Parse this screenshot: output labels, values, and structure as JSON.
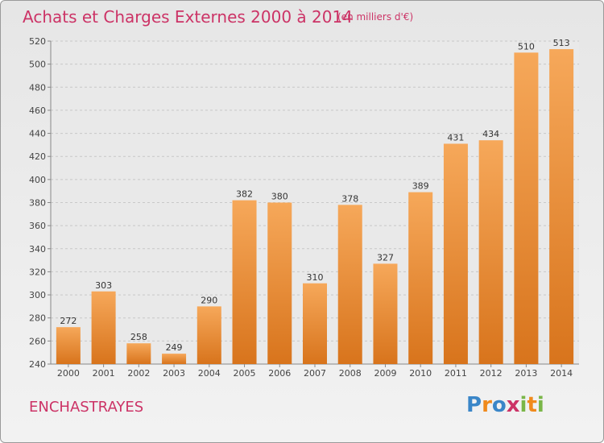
{
  "title": "Achats et Charges Externes 2000 à 2014",
  "subtitle": "(en milliers d'€)",
  "commune": "ENCHASTRAYES",
  "logo": {
    "text": "Proxiti",
    "colors": [
      "#3a86c8",
      "#f08a1c",
      "#3a86c8",
      "#cc3366",
      "#7ab648",
      "#f08a1c",
      "#7ab648"
    ]
  },
  "colors": {
    "title": "#cc3366",
    "bar_light": "#f6a85a",
    "bar_dark": "#d8741c"
  },
  "chart_data": {
    "type": "bar",
    "title": "Achats et Charges Externes 2000 à 2014",
    "subtitle": "(en milliers d'€)",
    "xlabel": "",
    "ylabel": "",
    "categories": [
      "2000",
      "2001",
      "2002",
      "2003",
      "2004",
      "2005",
      "2006",
      "2007",
      "2008",
      "2009",
      "2010",
      "2011",
      "2012",
      "2013",
      "2014"
    ],
    "values": [
      272,
      303,
      258,
      249,
      290,
      382,
      380,
      310,
      378,
      327,
      389,
      431,
      434,
      510,
      513
    ],
    "ylim": [
      240,
      520
    ],
    "yticks": [
      240,
      260,
      280,
      300,
      320,
      340,
      360,
      380,
      400,
      420,
      440,
      460,
      480,
      500,
      520
    ],
    "grid": true,
    "legend": "none"
  }
}
